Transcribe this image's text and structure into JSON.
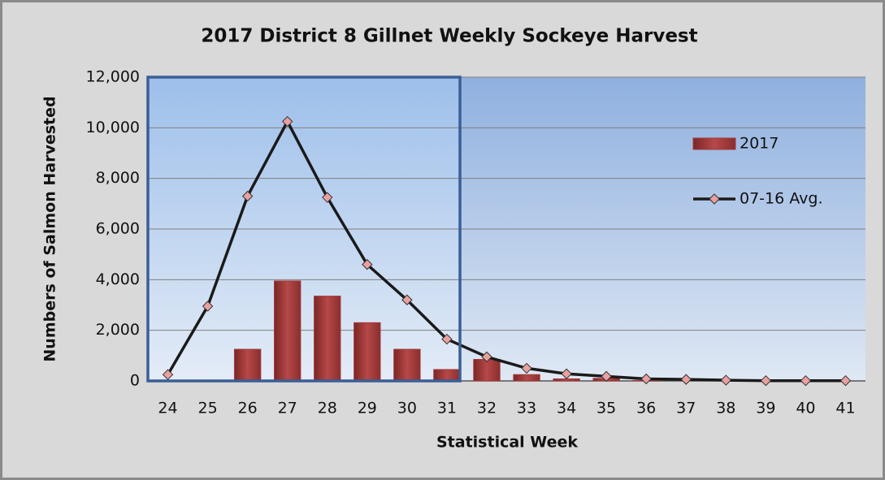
{
  "chart_data": {
    "type": "bar",
    "title": "2017 District 8 Gillnet Weekly Sockeye Harvest",
    "x_label": "Statistical Week",
    "y_label": "Numbers of Salmon Harvested",
    "categories": [
      "24",
      "25",
      "26",
      "27",
      "28",
      "29",
      "30",
      "31",
      "32",
      "33",
      "34",
      "35",
      "36",
      "37",
      "38",
      "39",
      "40",
      "41"
    ],
    "series": [
      {
        "name": "2017",
        "type": "bar",
        "color": "#a33a3a",
        "values": [
          0,
          0,
          1250,
          3950,
          3350,
          2300,
          1250,
          450,
          850,
          250,
          80,
          100,
          20,
          0,
          0,
          0,
          0,
          0
        ]
      },
      {
        "name": "07-16 Avg.",
        "type": "line",
        "color": "#1a1a1a",
        "values": [
          250,
          2950,
          7300,
          10250,
          7250,
          4600,
          3200,
          1650,
          950,
          500,
          280,
          180,
          80,
          60,
          30,
          10,
          10,
          10
        ]
      }
    ],
    "ylim": [
      0,
      12000
    ],
    "yticks": [
      0,
      {
        "value": 2000,
        "label": "2,000"
      },
      {
        "value": 4000,
        "label": "4,000"
      },
      {
        "value": 6000,
        "label": "6,000"
      },
      {
        "value": 8000,
        "label": "8,000"
      },
      {
        "value": 10000,
        "label": "10,000"
      },
      {
        "value": 12000,
        "label": "12,000"
      }
    ],
    "grid": true,
    "legend": "right"
  }
}
